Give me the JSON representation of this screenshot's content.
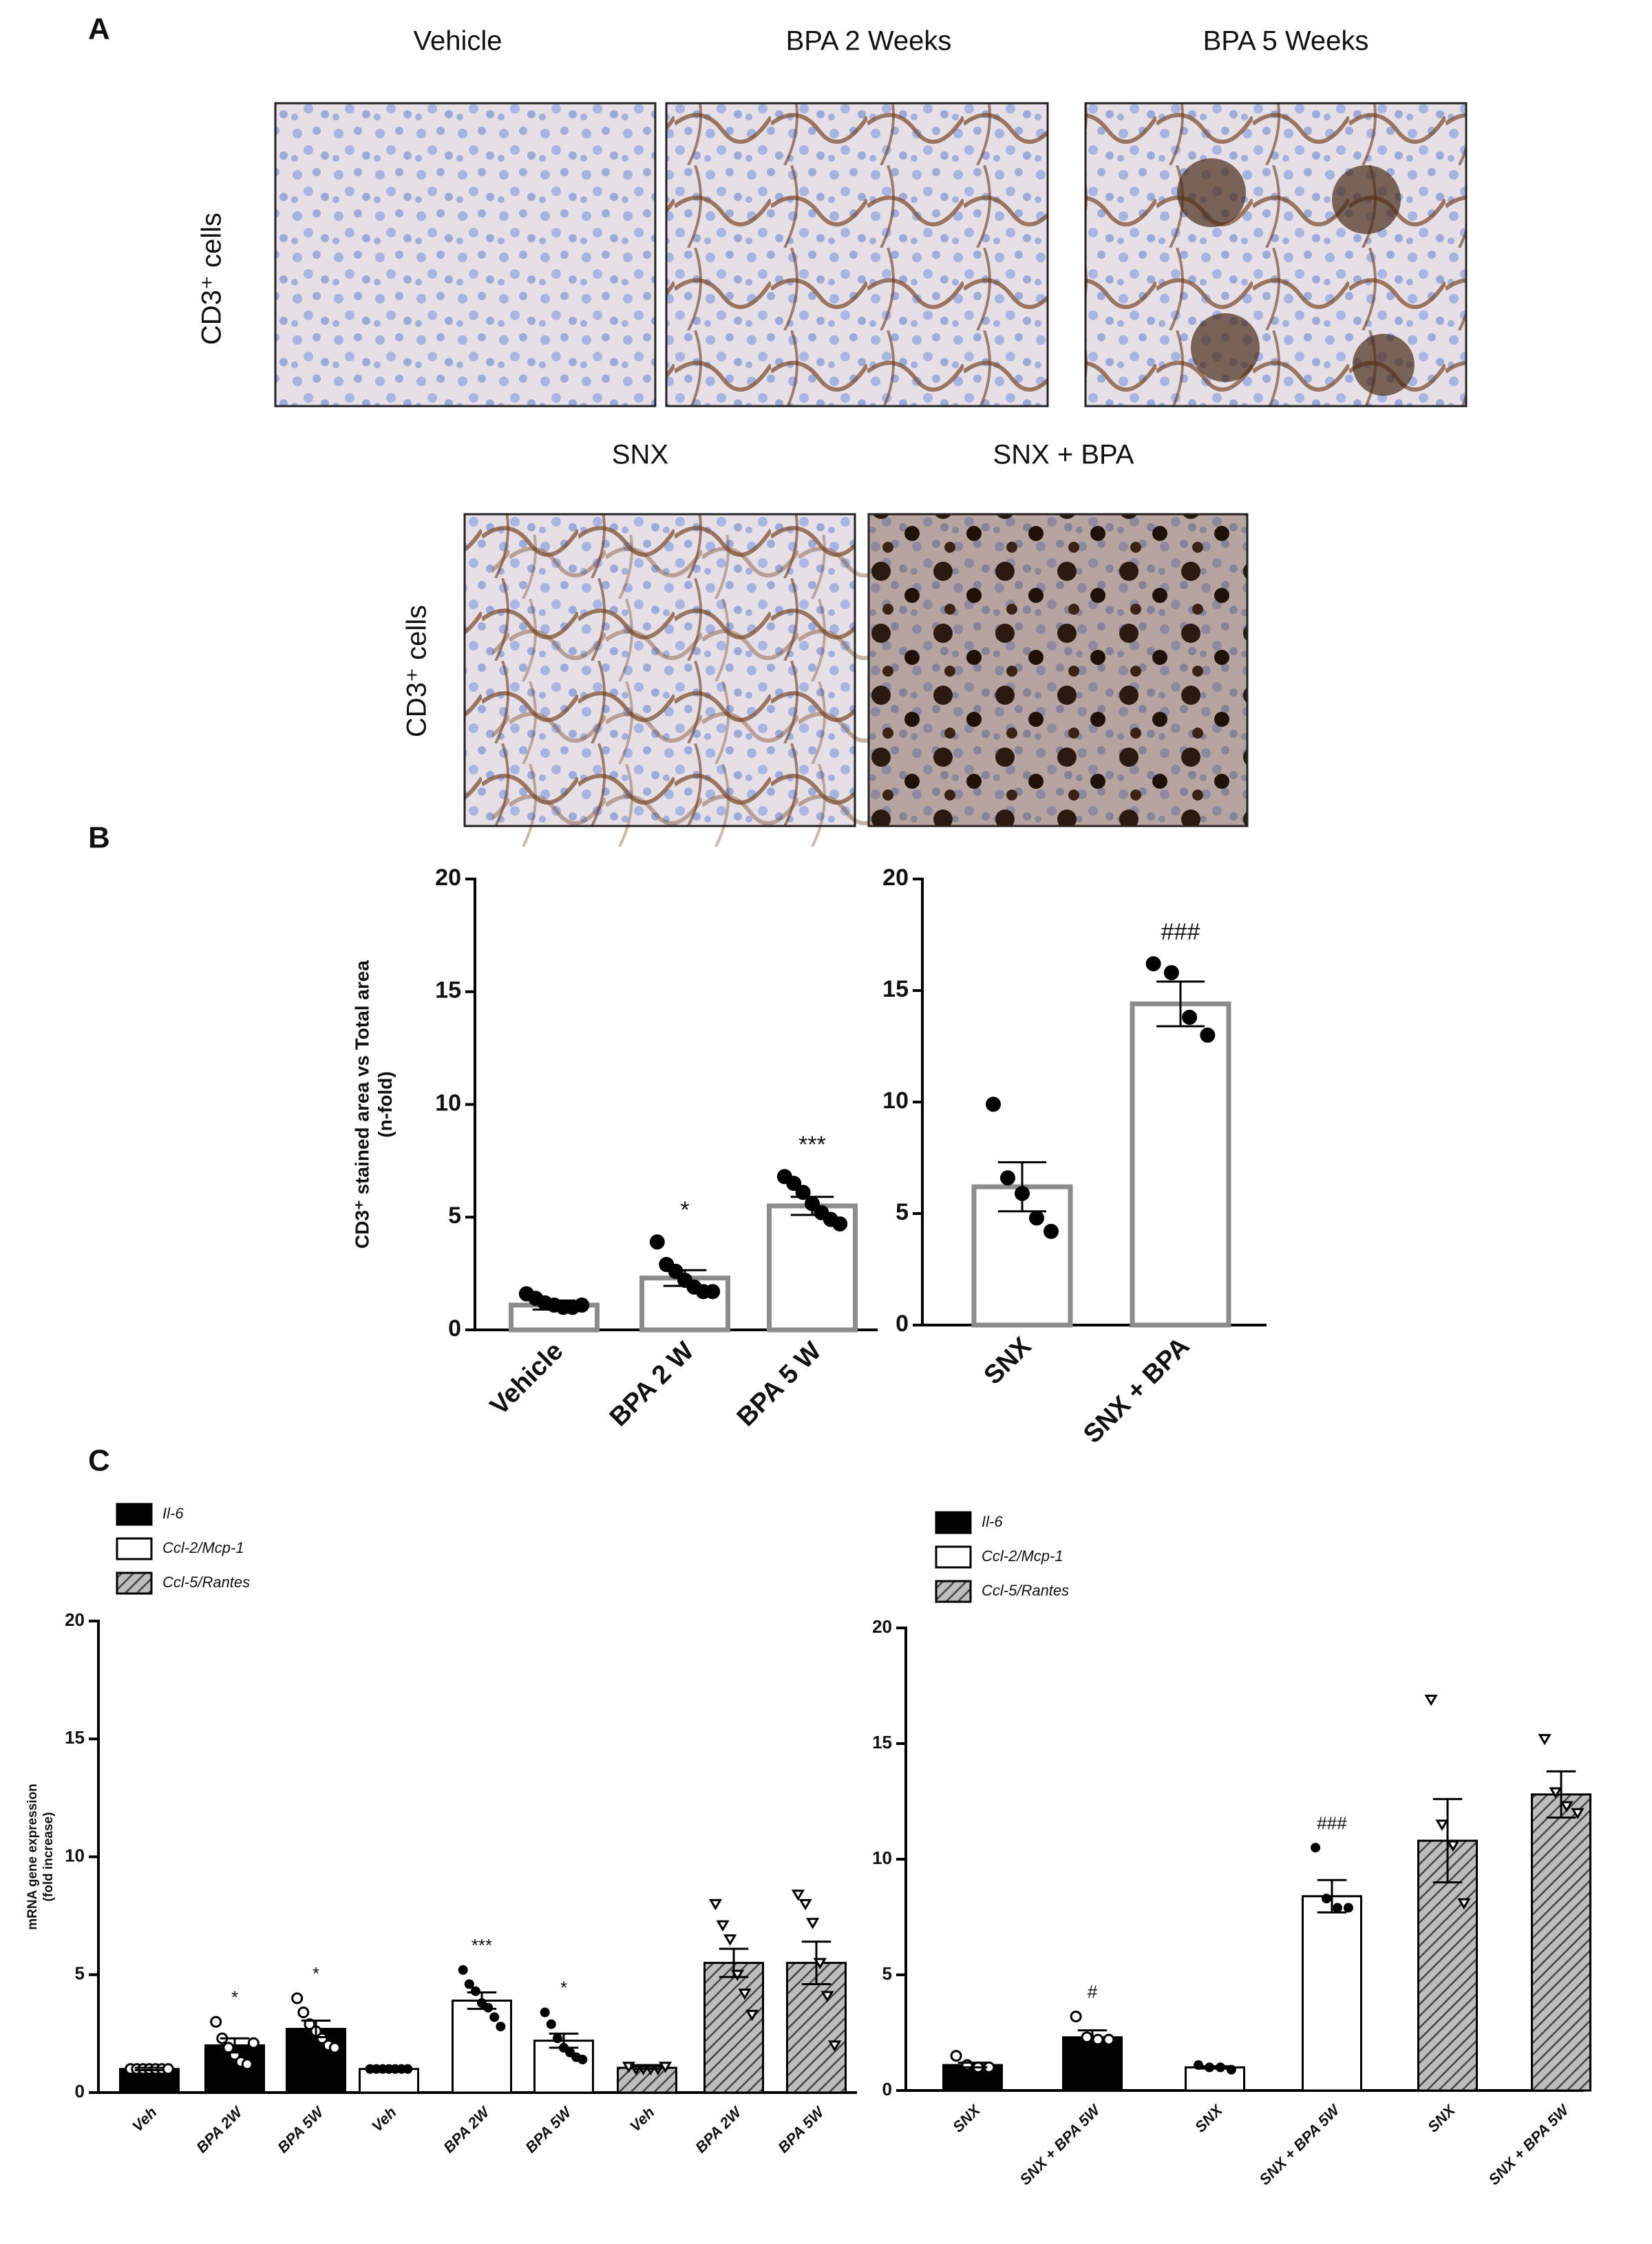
{
  "panels": [
    "A",
    "B",
    "C"
  ],
  "images": {
    "row1": [
      "Vehicle",
      "BPA  2 Weeks",
      "BPA 5 Weeks"
    ],
    "row2": [
      "SNX",
      "SNX + BPA"
    ],
    "ylabel": "CD3⁺ cells"
  },
  "chart_data": [
    {
      "type": "bar",
      "categories": [
        "Vehicle",
        "BPA 2 W",
        "BPA 5 W"
      ],
      "values": [
        1.1,
        2.3,
        5.5
      ],
      "errors": [
        0.2,
        0.35,
        0.4
      ],
      "points": [
        [
          1.6,
          1.4,
          1.2,
          1.1,
          1.0,
          1.0,
          1.1
        ],
        [
          3.9,
          2.9,
          2.6,
          2.2,
          1.9,
          1.7,
          1.7
        ],
        [
          6.8,
          6.5,
          6.1,
          5.6,
          5.2,
          4.9,
          4.7
        ]
      ],
      "annotations": [
        null,
        "*",
        "***"
      ],
      "annotation_color": "#3b5fc9",
      "color": "#8c8c8c",
      "ylabel": [
        "CD3⁺ stained area vs Total area",
        "(n-fold)"
      ],
      "ylim": [
        0,
        20
      ],
      "yticks": [
        0,
        5,
        10,
        15,
        20
      ]
    },
    {
      "type": "bar",
      "categories": [
        "SNX",
        "SNX + BPA"
      ],
      "values": [
        6.2,
        14.4
      ],
      "errors": [
        1.1,
        1.0
      ],
      "points": [
        [
          9.9,
          6.6,
          5.9,
          4.8,
          4.2
        ],
        [
          16.2,
          15.8,
          13.8,
          13.0
        ]
      ],
      "annotations": [
        null,
        "###"
      ],
      "annotation_color": "#3b5fc9",
      "color": "#8c8c8c",
      "ylim": [
        0,
        20
      ],
      "yticks": [
        0,
        5,
        10,
        15,
        20
      ]
    },
    {
      "type": "bar",
      "categories": [
        "Veh",
        "BPA 2W",
        "BPA 5W",
        "Veh",
        "BPA 2W",
        "BPA 5W",
        "Veh",
        "BPA 2W",
        "BPA 5W"
      ],
      "ylabel": [
        "mRNA gene expression",
        "(fold increase)"
      ],
      "ylim": [
        0,
        20
      ],
      "yticks": [
        0,
        5,
        10,
        15,
        20
      ],
      "annotation_color": "#3b5fc9",
      "series": [
        {
          "name": "Il-6",
          "color": "#000000",
          "marker": "circle-open",
          "values": [
            1.0,
            2.0,
            2.7,
            null,
            null,
            null,
            null,
            null,
            null
          ],
          "errors": [
            0.05,
            0.3,
            0.35,
            null,
            null,
            null,
            null,
            null,
            null
          ],
          "points": [
            [
              1,
              1,
              1,
              1,
              1,
              1,
              1
            ],
            [
              3.0,
              2.3,
              1.9,
              1.6,
              1.3,
              1.2,
              2.1
            ],
            [
              4.0,
              3.4,
              2.9,
              2.6,
              2.3,
              2.0,
              1.9
            ],
            null,
            null,
            null,
            null,
            null,
            null
          ],
          "annotations": [
            null,
            "*",
            "*",
            null,
            null,
            null,
            null,
            null,
            null
          ]
        },
        {
          "name": "Ccl-2/Mcp-1",
          "color": "#ffffff",
          "marker": "circle",
          "values": [
            null,
            null,
            null,
            1.0,
            3.9,
            2.2,
            null,
            null,
            null
          ],
          "errors": [
            null,
            null,
            null,
            0.05,
            0.35,
            0.3,
            null,
            null,
            null
          ],
          "points": [
            null,
            null,
            null,
            [
              1,
              1,
              1,
              1,
              1,
              1,
              1
            ],
            [
              5.2,
              4.6,
              4.3,
              3.8,
              3.6,
              3.2,
              2.8
            ],
            [
              3.4,
              2.9,
              2.3,
              1.9,
              1.7,
              1.5,
              1.4
            ],
            null,
            null,
            null
          ],
          "annotations": [
            null,
            null,
            null,
            null,
            "***",
            "*",
            null,
            null,
            null
          ]
        },
        {
          "name": "Ccl-5/Rantes",
          "color": "#ffffff",
          "hatch": true,
          "marker": "triangle",
          "values": [
            null,
            null,
            null,
            null,
            null,
            null,
            1.05,
            5.5,
            5.5
          ],
          "errors": [
            null,
            null,
            null,
            null,
            null,
            null,
            0.05,
            0.6,
            0.9
          ],
          "points": [
            null,
            null,
            null,
            null,
            null,
            null,
            [
              1.1,
              1.0,
              1.0,
              1.0,
              1.0,
              1.1
            ],
            [
              8.0,
              7.1,
              6.5,
              5.0,
              4.2,
              3.3
            ],
            [
              8.4,
              8.0,
              7.2,
              5.5,
              4.1,
              2.0
            ]
          ]
        }
      ]
    },
    {
      "type": "bar",
      "categories": [
        "SNX",
        "SNX + BPA 5W",
        "SNX",
        "SNX + BPA 5W",
        "SNX",
        "SNX + BPA 5W"
      ],
      "ylim": [
        0,
        20
      ],
      "yticks": [
        0,
        5,
        10,
        15,
        20
      ],
      "annotation_color": "#3b5fc9",
      "series": [
        {
          "name": "Il-6",
          "color": "#000000",
          "marker": "circle-open",
          "values": [
            1.1,
            2.3,
            null,
            null,
            null,
            null
          ],
          "errors": [
            0.1,
            0.3,
            null,
            null,
            null,
            null
          ],
          "points": [
            [
              1.5,
              1.1,
              1.0,
              1.0
            ],
            [
              3.2,
              2.3,
              2.2,
              2.2
            ],
            null,
            null,
            null,
            null
          ],
          "annotations": [
            null,
            "#",
            null,
            null,
            null,
            null
          ]
        },
        {
          "name": "Ccl-2/Mcp-1",
          "color": "#ffffff",
          "marker": "circle",
          "values": [
            null,
            null,
            1.0,
            8.4,
            null,
            null
          ],
          "errors": [
            null,
            null,
            0.05,
            0.7,
            null,
            null
          ],
          "points": [
            null,
            null,
            [
              1.1,
              1.0,
              1.0,
              0.9
            ],
            [
              10.5,
              8.3,
              7.9,
              7.9
            ],
            null,
            null
          ],
          "annotations": [
            null,
            null,
            null,
            "###",
            null,
            null
          ]
        },
        {
          "name": "Ccl-5/Rantes",
          "color": "#ffffff",
          "hatch": true,
          "marker": "triangle",
          "values": [
            null,
            null,
            null,
            null,
            10.8,
            12.8
          ],
          "errors": [
            null,
            null,
            null,
            null,
            1.8,
            1.0
          ],
          "points": [
            null,
            null,
            null,
            null,
            [
              16.9,
              11.5,
              10.6,
              8.1
            ],
            [
              15.2,
              12.9,
              12.3,
              12.0
            ]
          ]
        }
      ]
    }
  ]
}
